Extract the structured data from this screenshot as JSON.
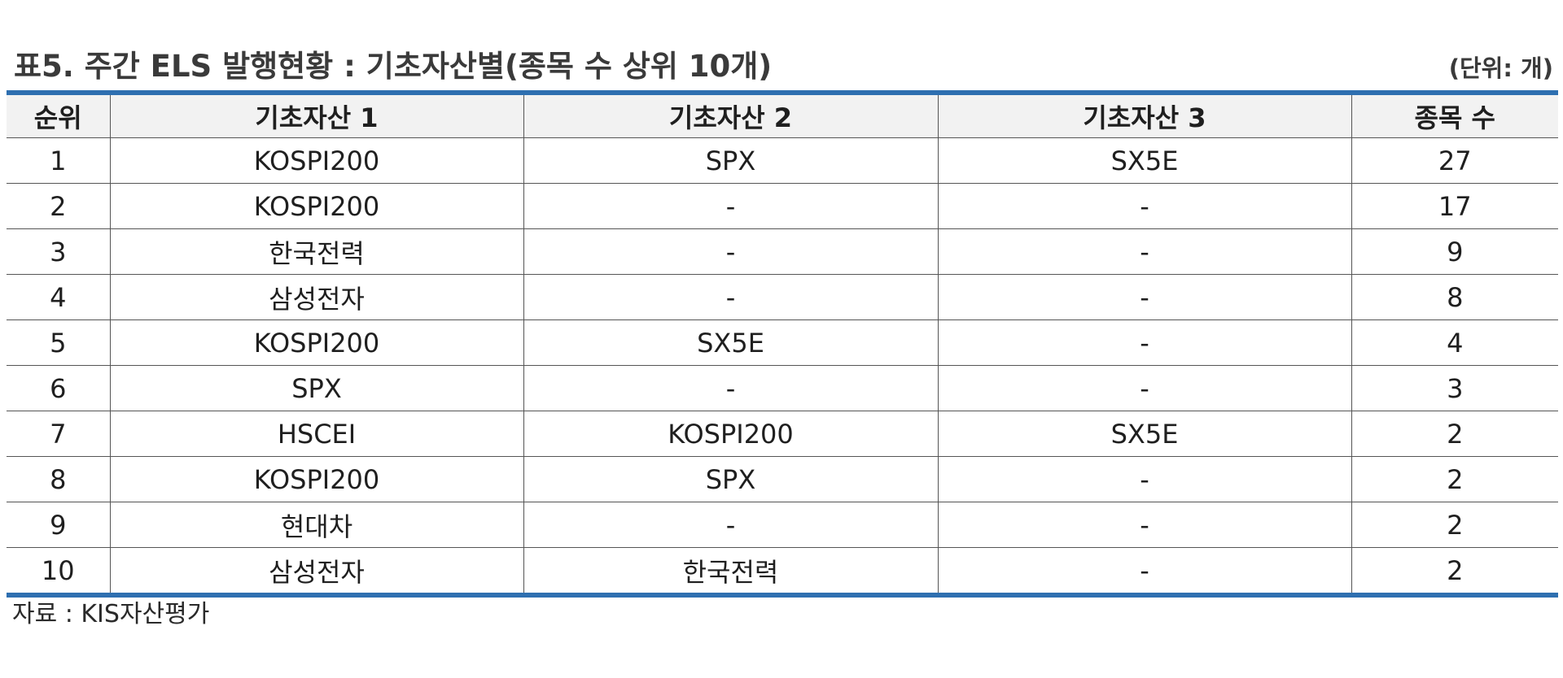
{
  "title": "표5. 주간 ELS 발행현황 : 기초자산별(종목 수 상위 10개)",
  "unit": "(단위: 개)",
  "columns": [
    "순위",
    "기초자산 1",
    "기초자산 2",
    "기초자산 3",
    "종목 수"
  ],
  "rows": [
    [
      "1",
      "KOSPI200",
      "SPX",
      "SX5E",
      "27"
    ],
    [
      "2",
      "KOSPI200",
      "-",
      "-",
      "17"
    ],
    [
      "3",
      "한국전력",
      "-",
      "-",
      "9"
    ],
    [
      "4",
      "삼성전자",
      "-",
      "-",
      "8"
    ],
    [
      "5",
      "KOSPI200",
      "SX5E",
      "-",
      "4"
    ],
    [
      "6",
      "SPX",
      "-",
      "-",
      "3"
    ],
    [
      "7",
      "HSCEI",
      "KOSPI200",
      "SX5E",
      "2"
    ],
    [
      "8",
      "KOSPI200",
      "SPX",
      "-",
      "2"
    ],
    [
      "9",
      "현대차",
      "-",
      "-",
      "2"
    ],
    [
      "10",
      "삼성전자",
      "한국전력",
      "-",
      "2"
    ]
  ],
  "source": "자료 : KIS자산평가",
  "colors": {
    "rule": "#2e6fb0",
    "header_bg": "#f2f2f2",
    "grid": "#555555"
  }
}
